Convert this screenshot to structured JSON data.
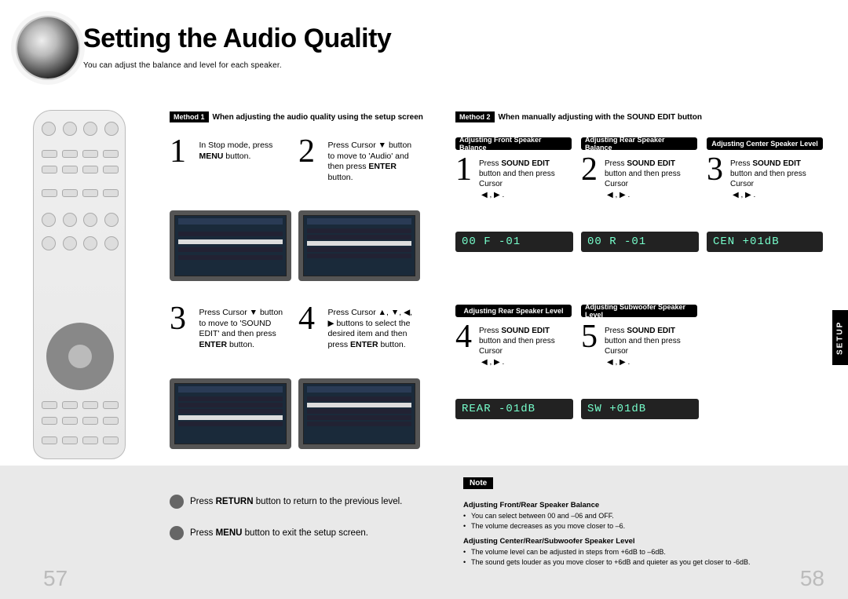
{
  "title": "Setting the Audio Quality",
  "subtitle": "You can adjust the balance and level for each speaker.",
  "method1": {
    "tag": "Method 1",
    "text": "When adjusting the audio quality using the setup screen"
  },
  "method2": {
    "tag": "Method 2",
    "text": "When manually adjusting with the SOUND EDIT button"
  },
  "steps_left": {
    "s1": "In Stop mode, press <b>MENU</b> button.",
    "s2": "Press Cursor ▼ button to move to 'Audio' and then press <b>ENTER</b> button.",
    "s3": "Press Cursor ▼ button to move to 'SOUND EDIT' and then press <b>ENTER</b> button.",
    "s4": "Press Cursor ▲, ▼, ◀, ▶ buttons to select the desired item and then press <b>ENTER</b> button."
  },
  "adjust": {
    "front_bal": "Adjusting Front Speaker Balance",
    "rear_bal": "Adjusting Rear Speaker Balance",
    "center_lvl": "Adjusting Center Speaker Level",
    "rear_lvl": "Adjusting Rear Speaker Level",
    "sub_lvl": "Adjusting Subwoofer Speaker Level"
  },
  "rsteps": {
    "press_sound_lr": "Press <b>SOUND EDIT</b> button and then press Cursor",
    "arrows_lr": "◀ , ▶ .",
    "arrows_lr2": "◀ , ▶ ."
  },
  "displays": {
    "d1": "00 F -01",
    "d2": "00 R -01",
    "d3": "CEN +01dB",
    "d4": "REAR -01dB",
    "d5": "SW  +01dB"
  },
  "footer": {
    "return": "Press <b>RETURN</b> button to return to the previous level.",
    "menu": "Press <b>MENU</b> button to exit the setup screen.",
    "note": "Note",
    "h1": "Adjusting Front/Rear Speaker Balance",
    "b1": "You can select between 00 and –06 and OFF.",
    "b2": "The volume decreases as you move closer to –6.",
    "h2": "Adjusting Center/Rear/Subwoofer Speaker Level",
    "b3": "The volume level can be adjusted in steps from +6dB to –6dB.",
    "b4": "The sound gets louder as you move closer to +6dB and quieter as you get closer to -6dB."
  },
  "side_tab": "SETUP",
  "pg_left": "57",
  "pg_right": "58"
}
